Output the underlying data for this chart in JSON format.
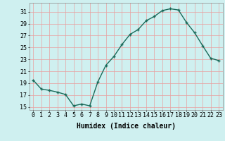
{
  "x": [
    0,
    1,
    2,
    3,
    4,
    5,
    6,
    7,
    8,
    9,
    10,
    11,
    12,
    13,
    14,
    15,
    16,
    17,
    18,
    19,
    20,
    21,
    22,
    23
  ],
  "y": [
    19.5,
    18.0,
    17.8,
    17.5,
    17.1,
    15.2,
    15.5,
    15.2,
    19.2,
    22.0,
    23.5,
    25.5,
    27.2,
    28.0,
    29.5,
    30.2,
    31.2,
    31.5,
    31.3,
    29.2,
    27.5,
    25.3,
    23.2,
    22.8
  ],
  "line_color": "#1a6b5a",
  "marker": "+",
  "marker_size": 3,
  "marker_lw": 1.0,
  "bg_color": "#cff0f0",
  "grid_color": "#e8a0a0",
  "ylabel_ticks": [
    15,
    17,
    19,
    21,
    23,
    25,
    27,
    29,
    31
  ],
  "ylim": [
    14.5,
    32.5
  ],
  "xlim": [
    -0.5,
    23.5
  ],
  "xlabel": "Humidex (Indice chaleur)",
  "xlabel_fontsize": 7,
  "tick_fontsize": 6,
  "line_width": 1.0
}
